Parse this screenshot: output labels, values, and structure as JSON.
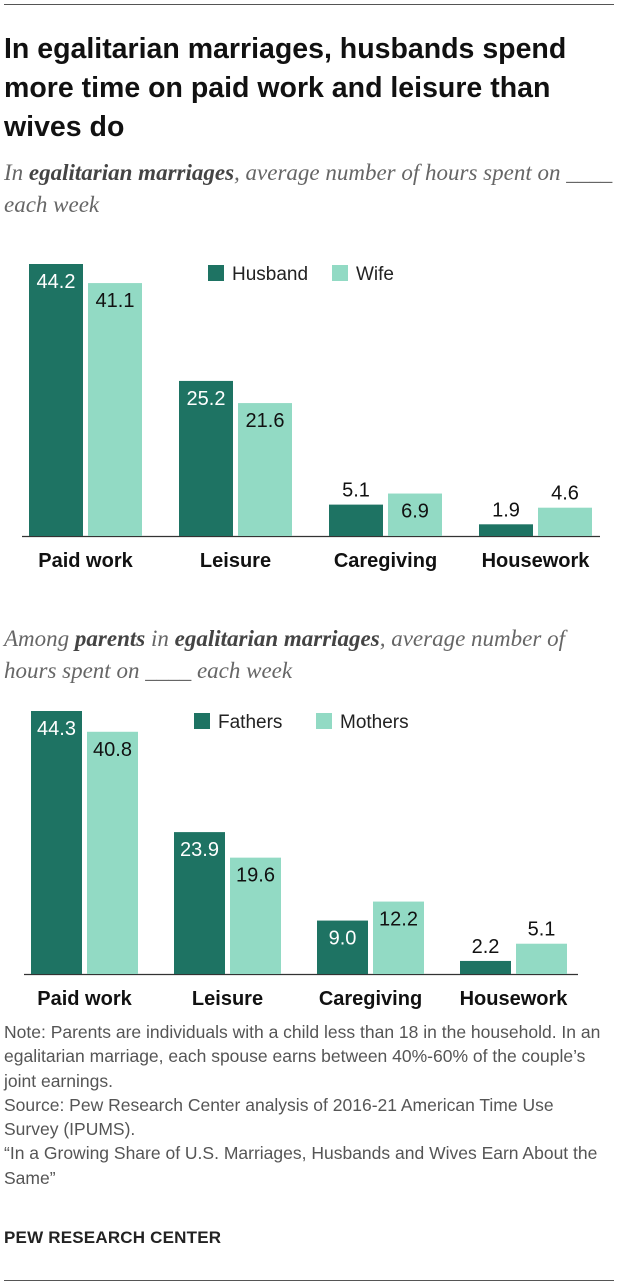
{
  "title": "In egalitarian marriages, husbands spend more time on paid work and leisure than wives do",
  "subtitle1": {
    "pre": "In ",
    "bold1": "egalitarian marriages",
    "post": ", average number of hours spent on ____ each week"
  },
  "subtitle2": {
    "pre": "Among ",
    "bold1": "parents",
    "mid": " in ",
    "bold2": "egalitarian marriages",
    "post": ", average number of hours spent on ____ each week"
  },
  "colors": {
    "dark": "#1e7363",
    "light": "#92dac4"
  },
  "chart_data": [
    {
      "type": "bar",
      "categories": [
        "Paid work",
        "Leisure",
        "Caregiving",
        "Housework"
      ],
      "series": [
        {
          "name": "Husband",
          "values": [
            44.2,
            25.2,
            5.1,
            1.9
          ],
          "labels": [
            "44.2",
            "25.2",
            "5.1",
            "1.9"
          ]
        },
        {
          "name": "Wife",
          "values": [
            41.1,
            21.6,
            6.9,
            4.6
          ],
          "labels": [
            "41.1",
            "21.6",
            "6.9",
            "4.6"
          ]
        }
      ],
      "legend": "top-center",
      "grid": false
    },
    {
      "type": "bar",
      "categories": [
        "Paid work",
        "Leisure",
        "Caregiving",
        "Housework"
      ],
      "series": [
        {
          "name": "Fathers",
          "values": [
            44.3,
            23.9,
            9.0,
            2.2
          ],
          "labels": [
            "44.3",
            "23.9",
            "9.0",
            "2.2"
          ]
        },
        {
          "name": "Mothers",
          "values": [
            40.8,
            19.6,
            12.2,
            5.1
          ],
          "labels": [
            "40.8",
            "19.6",
            "12.2",
            "5.1"
          ]
        }
      ],
      "legend": "top-center",
      "grid": false
    }
  ],
  "notes": {
    "note": "Note: Parents are individuals with a child less than 18 in the household. In an egalitarian marriage, each spouse earns between 40%-60% of the couple’s joint earnings.",
    "source": "Source: Pew Research Center analysis of 2016-21 American Time Use Survey (IPUMS).",
    "report": "“In a Growing Share of U.S. Marriages, Husbands and Wives Earn About the Same”"
  },
  "footer": "PEW RESEARCH CENTER"
}
